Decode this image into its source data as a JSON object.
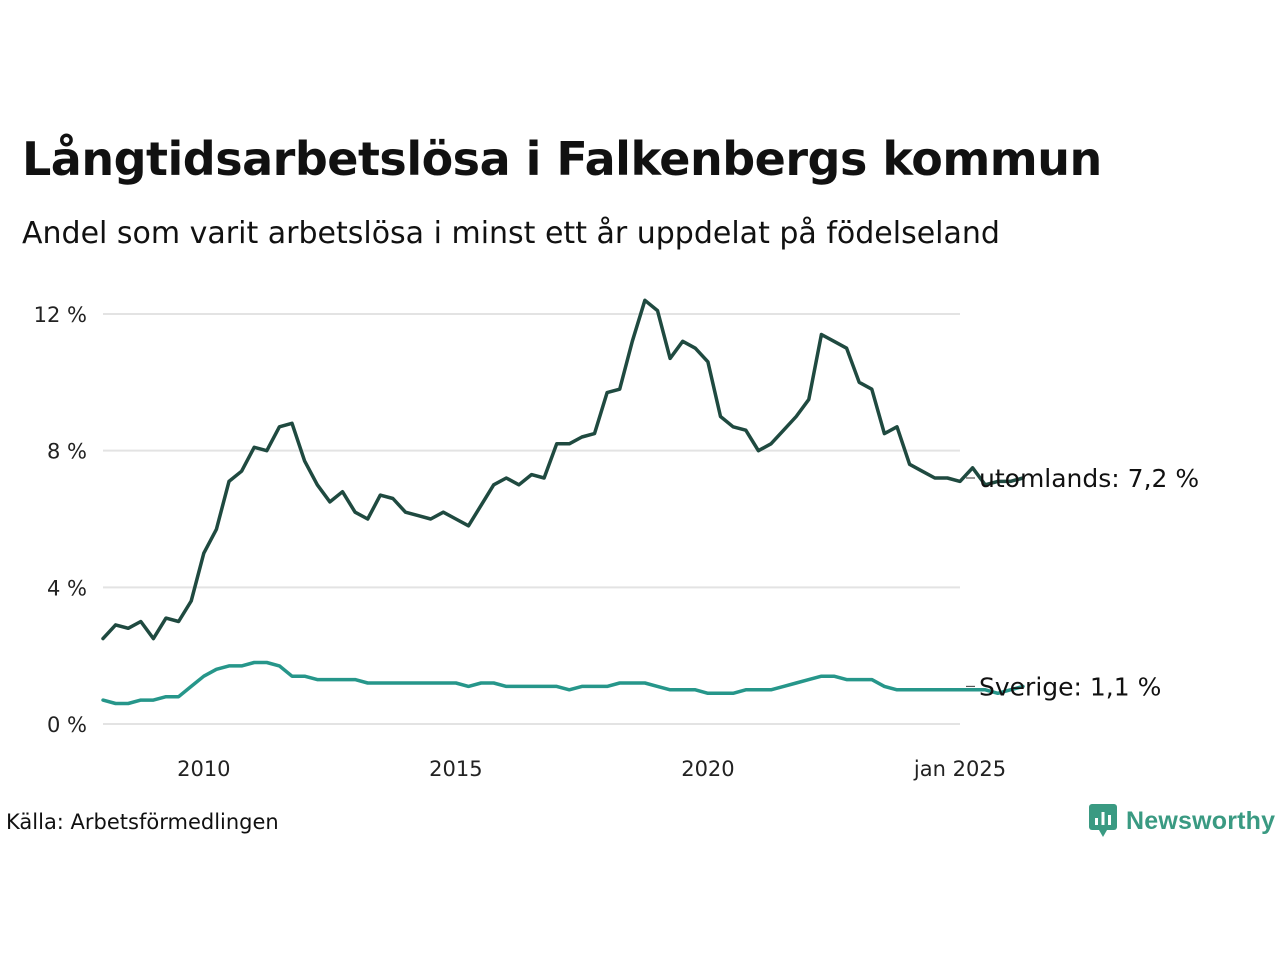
{
  "title": "Långtidsarbetslösa i Falkenbergs kommun",
  "subtitle": "Andel som varit arbetslösa i minst ett år uppdelat på födelseland",
  "source": "Källa: Arbetsförmedlingen",
  "brand": {
    "name": "Newsworthy",
    "icon": "newsworthy-logo-icon",
    "color": "#3a9a82"
  },
  "chart_data": {
    "type": "line",
    "title": "Långtidsarbetslösa i Falkenbergs kommun",
    "subtitle": "Andel som varit arbetslösa i minst ett år uppdelat på födelseland",
    "x_start": 2008.0,
    "x_step_months": 3,
    "xlim": [
      2008.0,
      2025.0
    ],
    "ylim": [
      0,
      12
    ],
    "x_ticks": [
      {
        "value": 2010,
        "label": "2010"
      },
      {
        "value": 2015,
        "label": "2015"
      },
      {
        "value": 2020,
        "label": "2020"
      },
      {
        "value": 2025,
        "label": "jan 2025"
      }
    ],
    "y_ticks": [
      {
        "value": 0,
        "label": "0 %"
      },
      {
        "value": 4,
        "label": "4 %"
      },
      {
        "value": 8,
        "label": "8 %"
      },
      {
        "value": 12,
        "label": "12 %"
      }
    ],
    "grid": "horizontal",
    "series": [
      {
        "name": "utomlands",
        "end_label": "utomlands: 7,2 %",
        "color": "#1f4a40",
        "values": [
          2.5,
          2.9,
          2.8,
          3.0,
          2.5,
          3.1,
          3.0,
          3.6,
          5.0,
          5.7,
          7.1,
          7.4,
          8.1,
          8.0,
          8.7,
          8.8,
          7.7,
          7.0,
          6.5,
          6.8,
          6.2,
          6.0,
          6.7,
          6.6,
          6.2,
          6.1,
          6.0,
          6.2,
          6.0,
          5.8,
          6.4,
          7.0,
          7.2,
          7.0,
          7.3,
          7.2,
          8.2,
          8.2,
          8.4,
          8.5,
          9.7,
          9.8,
          11.2,
          12.4,
          12.1,
          10.7,
          11.2,
          11.0,
          10.6,
          9.0,
          8.7,
          8.6,
          8.0,
          8.2,
          8.6,
          9.0,
          9.5,
          11.4,
          11.2,
          11.0,
          10.0,
          9.8,
          8.5,
          8.7,
          7.6,
          7.4,
          7.2,
          7.2,
          7.1,
          7.5,
          7.0,
          7.1,
          7.1,
          7.2
        ]
      },
      {
        "name": "Sverige",
        "end_label": "Sverige: 1,1 %",
        "color": "#26968a",
        "values": [
          0.7,
          0.6,
          0.6,
          0.7,
          0.7,
          0.8,
          0.8,
          1.1,
          1.4,
          1.6,
          1.7,
          1.7,
          1.8,
          1.8,
          1.7,
          1.4,
          1.4,
          1.3,
          1.3,
          1.3,
          1.3,
          1.2,
          1.2,
          1.2,
          1.2,
          1.2,
          1.2,
          1.2,
          1.2,
          1.1,
          1.2,
          1.2,
          1.1,
          1.1,
          1.1,
          1.1,
          1.1,
          1.0,
          1.1,
          1.1,
          1.1,
          1.2,
          1.2,
          1.2,
          1.1,
          1.0,
          1.0,
          1.0,
          0.9,
          0.9,
          0.9,
          1.0,
          1.0,
          1.0,
          1.1,
          1.2,
          1.3,
          1.4,
          1.4,
          1.3,
          1.3,
          1.3,
          1.1,
          1.0,
          1.0,
          1.0,
          1.0,
          1.0,
          1.0,
          1.0,
          1.0,
          0.9,
          1.0,
          1.1
        ]
      }
    ]
  }
}
